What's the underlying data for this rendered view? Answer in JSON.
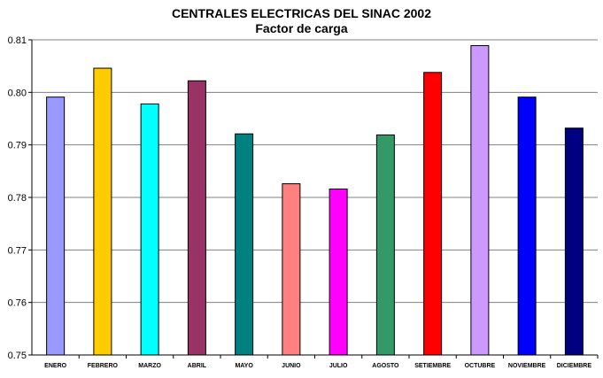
{
  "chart_data": {
    "type": "bar",
    "title": "CENTRALES ELECTRICAS DEL SINAC 2002",
    "subtitle": "Factor de carga",
    "xlabel": "",
    "ylabel": "",
    "ylim": [
      0.75,
      0.81
    ],
    "yticks": [
      "0.75",
      "0.76",
      "0.77",
      "0.78",
      "0.79",
      "0.80",
      "0.81"
    ],
    "grid": true,
    "legend": "none",
    "categories": [
      "ENERO",
      "FEBRERO",
      "MARZO",
      "ABRIL",
      "MAYO",
      "JUNIO",
      "JULIO",
      "AGOSTO",
      "SETIEMBRE",
      "OCTUBRE",
      "NOVIEMBRE",
      "DICIEMBRE"
    ],
    "values": [
      0.7991,
      0.8046,
      0.7978,
      0.8022,
      0.7921,
      0.7826,
      0.7816,
      0.7919,
      0.8038,
      0.8089,
      0.7991,
      0.7932
    ],
    "colors": [
      "#9999ff",
      "#ffcc00",
      "#00ffff",
      "#993366",
      "#008080",
      "#ff8080",
      "#ff00ff",
      "#339966",
      "#ff0000",
      "#cc99ff",
      "#0000ff",
      "#000080"
    ]
  }
}
